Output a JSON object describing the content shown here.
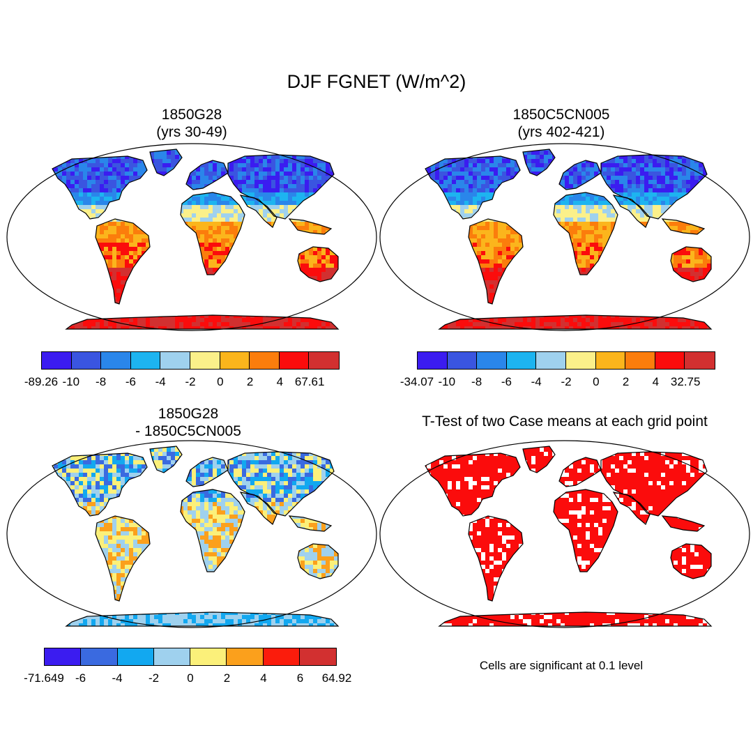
{
  "title": "DJF FGNET (W/m^2)",
  "panels": [
    {
      "id": "p1",
      "title_line1": "1850G28",
      "title_line2": "(yrs 30-49)",
      "map_style": "field",
      "colorbar": {
        "colors": [
          "#3b1cf0",
          "#3a55e0",
          "#2a86ea",
          "#1db4f0",
          "#9fd1ee",
          "#fbf08a",
          "#fbb51c",
          "#fb7d0c",
          "#fb0c0c",
          "#d23030"
        ],
        "labels": [
          "-89.26",
          "-10",
          "-8",
          "-6",
          "-4",
          "-2",
          "0",
          "2",
          "4",
          "67.61"
        ]
      }
    },
    {
      "id": "p2",
      "title_line1": "1850C5CN005",
      "title_line2": "(yrs 402-421)",
      "map_style": "field",
      "colorbar": {
        "colors": [
          "#3b1cf0",
          "#3a55e0",
          "#2a86ea",
          "#1db4f0",
          "#9fd1ee",
          "#fbf08a",
          "#fbb51c",
          "#fb7d0c",
          "#fb0c0c",
          "#d23030"
        ],
        "labels": [
          "-34.07",
          "-10",
          "-8",
          "-6",
          "-4",
          "-2",
          "0",
          "2",
          "4",
          "32.75"
        ]
      }
    },
    {
      "id": "p3",
      "title_line1": "1850G28",
      "title_line2": "- 1850C5CN005",
      "map_style": "diff",
      "colorbar": {
        "colors": [
          "#3b1cf0",
          "#3a6ae0",
          "#12a8f0",
          "#9fd1ee",
          "#fbf07a",
          "#fba01c",
          "#fb1c0c",
          "#d23030"
        ],
        "labels": [
          "-71.649",
          "-6",
          "-4",
          "-2",
          "0",
          "2",
          "4",
          "6",
          "64.92"
        ]
      }
    },
    {
      "id": "p4",
      "title_line1": "T-Test of two Case means at each grid point",
      "map_style": "ttest",
      "note": "Cells are significant at 0.1 level"
    }
  ]
}
